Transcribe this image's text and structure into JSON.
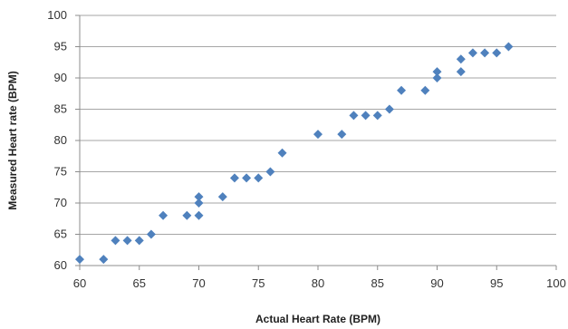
{
  "chart_data": {
    "type": "scatter",
    "title": "",
    "xlabel": "Actual Heart Rate (BPM)",
    "ylabel": "Measured Heart rate (BPM)",
    "xlim": [
      60,
      100
    ],
    "ylim": [
      60,
      100
    ],
    "x_ticks": [
      60,
      65,
      70,
      75,
      80,
      85,
      90,
      95,
      100
    ],
    "y_ticks": [
      60,
      65,
      70,
      75,
      80,
      85,
      90,
      95,
      100
    ],
    "x_tick_labels": [
      "60",
      "65",
      "70",
      "75",
      "80",
      "85",
      "90",
      "95",
      "100"
    ],
    "y_tick_labels": [
      "60",
      "65",
      "70",
      "75",
      "80",
      "85",
      "90",
      "95",
      "100"
    ],
    "grid": "horizontal",
    "legend": "none",
    "marker": "diamond",
    "marker_color": "#4f81bd",
    "series": [
      {
        "points": [
          [
            60,
            61
          ],
          [
            62,
            61
          ],
          [
            63,
            64
          ],
          [
            64,
            64
          ],
          [
            65,
            64
          ],
          [
            66,
            65
          ],
          [
            67,
            68
          ],
          [
            69,
            68
          ],
          [
            70,
            68
          ],
          [
            70,
            70
          ],
          [
            70,
            71
          ],
          [
            72,
            71
          ],
          [
            73,
            74
          ],
          [
            74,
            74
          ],
          [
            75,
            74
          ],
          [
            76,
            75
          ],
          [
            77,
            78
          ],
          [
            80,
            81
          ],
          [
            82,
            81
          ],
          [
            83,
            84
          ],
          [
            84,
            84
          ],
          [
            85,
            84
          ],
          [
            86,
            85
          ],
          [
            87,
            88
          ],
          [
            89,
            88
          ],
          [
            90,
            90
          ],
          [
            90,
            91
          ],
          [
            92,
            91
          ],
          [
            92,
            93
          ],
          [
            93,
            94
          ],
          [
            94,
            94
          ],
          [
            95,
            94
          ],
          [
            96,
            95
          ]
        ]
      }
    ]
  }
}
